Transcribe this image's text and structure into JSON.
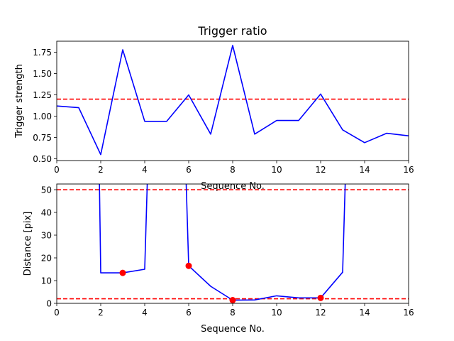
{
  "chart_data": [
    {
      "type": "line",
      "title": "Trigger ratio",
      "xlabel": "Sequence No.",
      "ylabel": "Trigger strength",
      "xlim": [
        0,
        16
      ],
      "ylim": [
        0.48,
        1.88
      ],
      "xticks": [
        "0",
        "2",
        "4",
        "6",
        "8",
        "10",
        "12",
        "14",
        "16"
      ],
      "yticks": [
        "0.50",
        "0.75",
        "1.00",
        "1.25",
        "1.50",
        "1.75"
      ],
      "grid": false,
      "series": [
        {
          "color": "#0000ff",
          "style": "solid",
          "x": [
            0,
            1,
            2,
            3,
            4,
            5,
            6,
            7,
            8,
            9,
            10,
            11,
            12,
            13,
            14,
            15,
            16
          ],
          "y": [
            1.12,
            1.1,
            0.55,
            1.78,
            0.94,
            0.94,
            1.25,
            0.79,
            1.83,
            0.79,
            0.95,
            0.95,
            1.26,
            0.84,
            0.69,
            0.8,
            0.77
          ]
        }
      ],
      "hlines": [
        {
          "y": 1.2,
          "color": "#ff0000",
          "style": "dashed"
        }
      ]
    },
    {
      "type": "line",
      "title": "",
      "xlabel": "Sequence No.",
      "ylabel": "Distance [pix]",
      "xlim": [
        0,
        16
      ],
      "ylim": [
        0,
        52.5
      ],
      "xticks": [
        "0",
        "2",
        "4",
        "6",
        "8",
        "10",
        "12",
        "14",
        "16"
      ],
      "yticks": [
        "0",
        "10",
        "20",
        "30",
        "40",
        "50"
      ],
      "grid": false,
      "series": [
        {
          "color": "#0000ff",
          "style": "solid",
          "x": [
            1.9,
            2,
            3,
            4,
            4.2,
            5.8,
            6,
            7,
            8,
            9,
            10,
            11,
            12,
            13,
            13.2
          ],
          "y": [
            80,
            13.4,
            13.4,
            15,
            80,
            80,
            16.5,
            7.5,
            1.4,
            1.5,
            3.3,
            2.4,
            2.4,
            13.7,
            80
          ]
        },
        {
          "type": "scatter",
          "color": "#ff0000",
          "x": [
            3,
            6,
            8,
            12
          ],
          "y": [
            13.4,
            16.5,
            1.4,
            2.4
          ]
        }
      ],
      "hlines": [
        {
          "y": 50,
          "color": "#ff0000",
          "style": "dashed"
        },
        {
          "y": 2,
          "color": "#ff0000",
          "style": "dashed"
        }
      ]
    }
  ]
}
